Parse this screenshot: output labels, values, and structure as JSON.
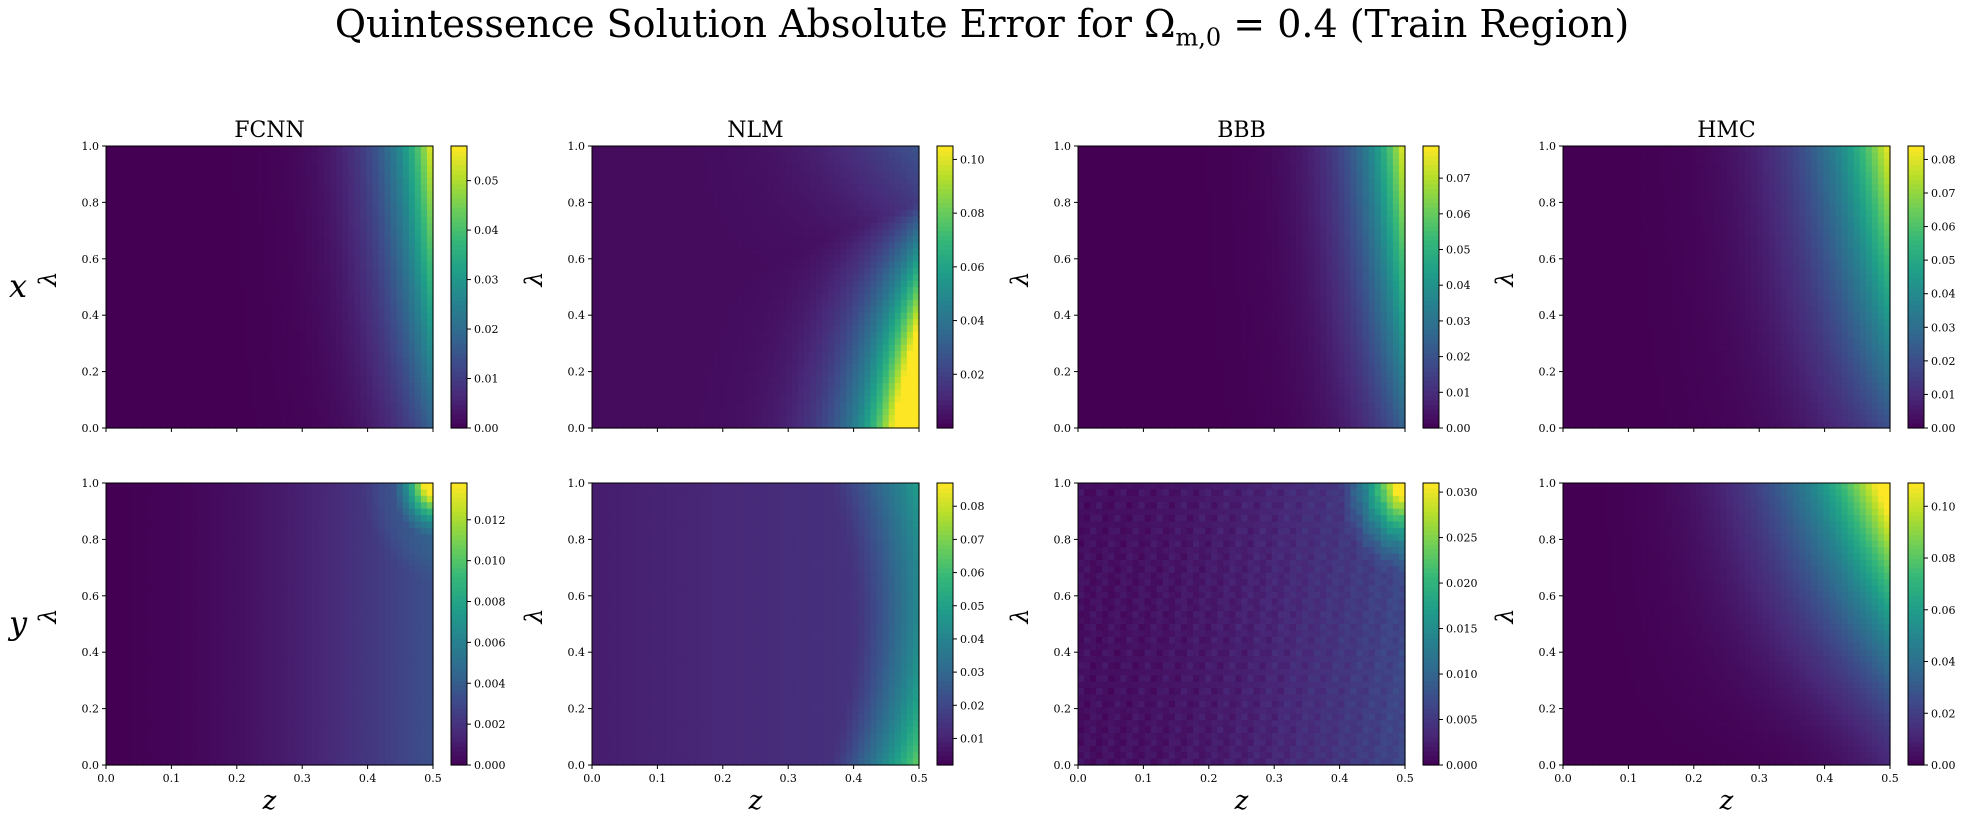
{
  "figure": {
    "title_prefix": "Quintessence Solution Absolute Error for Ω",
    "title_sub": "m,0",
    "title_suffix": " = 0.4 (Train Region)"
  },
  "chart_data": [
    {
      "type": "heatmap",
      "row_label": "x",
      "title": "FCNN",
      "xlabel": "",
      "ylabel": "λ",
      "xlim": [
        0,
        0.5
      ],
      "ylim": [
        0,
        1
      ],
      "colorbar": {
        "min": 0.0,
        "max": 0.057,
        "ticks": [
          "0.00",
          "0.01",
          "0.02",
          "0.03",
          "0.04",
          "0.05"
        ]
      },
      "pattern": "right_edge_peak_at_top",
      "grid": false
    },
    {
      "type": "heatmap",
      "row_label": "x",
      "title": "NLM",
      "xlabel": "",
      "ylabel": "λ",
      "xlim": [
        0,
        0.5
      ],
      "ylim": [
        0,
        1
      ],
      "colorbar": {
        "min": 0.0,
        "max": 0.105,
        "ticks": [
          "0.02",
          "0.04",
          "0.06",
          "0.08",
          "0.10"
        ]
      },
      "pattern": "bottom_right_peak_with_curved_trough",
      "grid": false
    },
    {
      "type": "heatmap",
      "row_label": "x",
      "title": "BBB",
      "xlabel": "",
      "ylabel": "λ",
      "xlim": [
        0,
        0.5
      ],
      "ylim": [
        0,
        1
      ],
      "colorbar": {
        "min": 0.0,
        "max": 0.079,
        "ticks": [
          "0.00",
          "0.01",
          "0.02",
          "0.03",
          "0.04",
          "0.05",
          "0.06",
          "0.07"
        ]
      },
      "pattern": "right_edge_peak_at_top",
      "grid": false
    },
    {
      "type": "heatmap",
      "row_label": "x",
      "title": "HMC",
      "xlabel": "",
      "ylabel": "λ",
      "xlim": [
        0,
        0.5
      ],
      "ylim": [
        0,
        1
      ],
      "colorbar": {
        "min": 0.0,
        "max": 0.084,
        "ticks": [
          "0.00",
          "0.01",
          "0.02",
          "0.03",
          "0.04",
          "0.05",
          "0.06",
          "0.07",
          "0.08"
        ]
      },
      "pattern": "right_edge_broad_peak",
      "grid": false
    },
    {
      "type": "heatmap",
      "row_label": "y",
      "title": "",
      "xlabel": "z",
      "ylabel": "λ",
      "xlim": [
        0,
        0.5
      ],
      "ylim": [
        0,
        1
      ],
      "colorbar": {
        "min": 0.0,
        "max": 0.0138,
        "ticks": [
          "0.000",
          "0.002",
          "0.004",
          "0.006",
          "0.008",
          "0.010",
          "0.012"
        ]
      },
      "pattern": "top_right_corner_with_arc",
      "grid": false
    },
    {
      "type": "heatmap",
      "row_label": "y",
      "title": "",
      "xlabel": "z",
      "ylabel": "λ",
      "xlim": [
        0,
        0.5
      ],
      "ylim": [
        0,
        1
      ],
      "colorbar": {
        "min": 0.002,
        "max": 0.087,
        "ticks": [
          "0.01",
          "0.02",
          "0.03",
          "0.04",
          "0.05",
          "0.06",
          "0.07",
          "0.08"
        ]
      },
      "pattern": "right_edge_with_vertical_arc",
      "grid": false
    },
    {
      "type": "heatmap",
      "row_label": "y",
      "title": "",
      "xlabel": "z",
      "ylabel": "λ",
      "xlim": [
        0,
        0.5
      ],
      "ylim": [
        0,
        1
      ],
      "colorbar": {
        "min": 0.0,
        "max": 0.031,
        "ticks": [
          "0.000",
          "0.005",
          "0.010",
          "0.015",
          "0.020",
          "0.025",
          "0.030"
        ]
      },
      "pattern": "top_right_corner_with_arc_noisy",
      "grid": false
    },
    {
      "type": "heatmap",
      "row_label": "y",
      "title": "",
      "xlabel": "z",
      "ylabel": "λ",
      "xlim": [
        0,
        0.5
      ],
      "ylim": [
        0,
        1
      ],
      "colorbar": {
        "min": 0.0,
        "max": 0.109,
        "ticks": [
          "0.00",
          "0.02",
          "0.04",
          "0.06",
          "0.08",
          "0.10"
        ]
      },
      "pattern": "top_right_peak_with_dip",
      "grid": false
    }
  ],
  "axes_ticks": {
    "x": [
      "0.0",
      "0.1",
      "0.2",
      "0.3",
      "0.4",
      "0.5"
    ],
    "y": [
      "0.0",
      "0.2",
      "0.4",
      "0.6",
      "0.8",
      "1.0"
    ]
  },
  "colormap": {
    "name": "viridis",
    "stops": [
      "#440154",
      "#482878",
      "#3e4989",
      "#31688e",
      "#26828e",
      "#1f9e89",
      "#35b779",
      "#6ece58",
      "#b5de2b",
      "#fde725"
    ]
  }
}
